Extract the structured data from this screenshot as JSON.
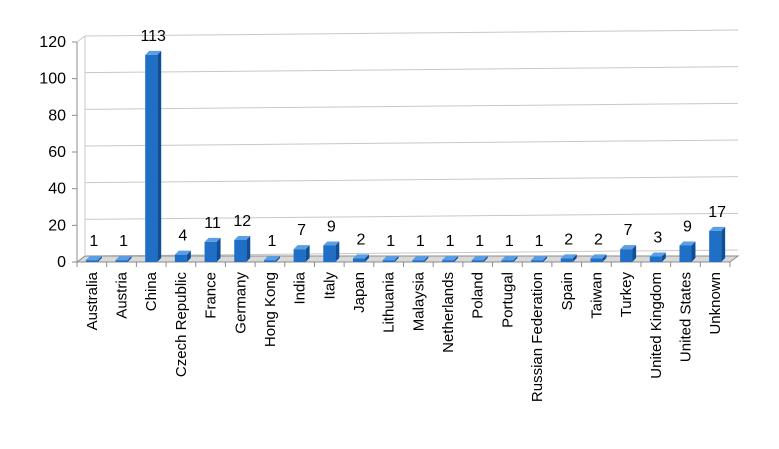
{
  "chart_data": {
    "type": "bar",
    "title": "",
    "xlabel": "",
    "ylabel": "",
    "ylim": [
      0,
      120
    ],
    "yticks": [
      0,
      20,
      40,
      60,
      80,
      100,
      120
    ],
    "grid": true,
    "legend": "none",
    "bar_color": "#1f6fc6",
    "bar_dark": "#0d4f98",
    "bar_light": "#5a9ee6",
    "categories": [
      "Australia",
      "Austria",
      "China",
      "Czech Republic",
      "France",
      "Germany",
      "Hong Kong",
      "India",
      "Italy",
      "Japan",
      "Lithuania",
      "Malaysia",
      "Netherlands",
      "Poland",
      "Portugal",
      "Russian Federation",
      "Spain",
      "Taiwan",
      "Turkey",
      "United Kingdom",
      "United States",
      "Unknown"
    ],
    "values": [
      1,
      1,
      113,
      4,
      11,
      12,
      1,
      7,
      9,
      2,
      1,
      1,
      1,
      1,
      1,
      1,
      2,
      2,
      7,
      3,
      9,
      17
    ]
  }
}
